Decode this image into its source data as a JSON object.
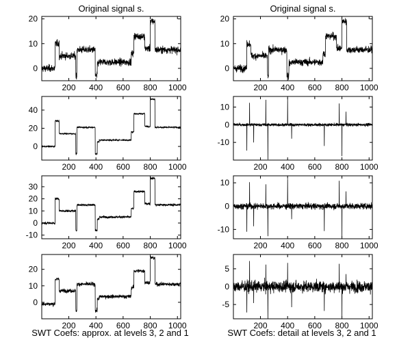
{
  "figure": {
    "background": "#ffffff",
    "line_color": "#000000",
    "bottom_labels": {
      "left": "SWT Coefs: approx. at levels 3, 2 and 1",
      "right": "SWT Coefs: detail at levels 3, 2 and 1"
    }
  },
  "chart_data": [
    {
      "id": "orig-left",
      "type": "line",
      "title": "Original signal s.",
      "xlim": [
        1,
        1024
      ],
      "ylim": [
        -5,
        21
      ],
      "xticks": [
        200,
        400,
        600,
        800,
        1000
      ],
      "yticks": [
        0,
        10,
        20
      ],
      "kind": "signal",
      "noise": 1.0,
      "segments": [
        [
          1,
          100,
          0
        ],
        [
          100,
          130,
          10
        ],
        [
          130,
          158,
          5
        ],
        [
          158,
          252,
          5
        ],
        [
          252,
          260,
          -3
        ],
        [
          260,
          395,
          7.5
        ],
        [
          395,
          410,
          -3
        ],
        [
          410,
          425,
          2
        ],
        [
          425,
          660,
          2.5
        ],
        [
          660,
          680,
          6
        ],
        [
          680,
          760,
          13
        ],
        [
          760,
          800,
          8
        ],
        [
          800,
          835,
          19
        ],
        [
          835,
          1024,
          7.5
        ]
      ]
    },
    {
      "id": "orig-right",
      "type": "line",
      "title": "Original signal s.",
      "xlim": [
        1,
        1024
      ],
      "ylim": [
        -5,
        21
      ],
      "xticks": [
        200,
        400,
        600,
        800,
        1000
      ],
      "yticks": [
        0,
        10,
        20
      ],
      "kind": "signal",
      "noise": 1.0,
      "segments": [
        [
          1,
          100,
          0
        ],
        [
          100,
          130,
          10
        ],
        [
          130,
          158,
          5
        ],
        [
          158,
          252,
          5
        ],
        [
          252,
          260,
          -3
        ],
        [
          260,
          395,
          7.5
        ],
        [
          395,
          410,
          -3
        ],
        [
          410,
          425,
          2
        ],
        [
          425,
          660,
          2.5
        ],
        [
          660,
          680,
          6
        ],
        [
          680,
          760,
          13
        ],
        [
          760,
          800,
          8
        ],
        [
          800,
          835,
          19
        ],
        [
          835,
          1024,
          7.5
        ]
      ]
    },
    {
      "id": "approx-3",
      "type": "line",
      "title": "",
      "xlim": [
        1,
        1024
      ],
      "ylim": [
        -15,
        55
      ],
      "xticks": [
        200,
        400,
        600,
        800,
        1000
      ],
      "yticks": [
        0,
        20,
        40
      ],
      "kind": "signal",
      "noise": 0.6,
      "segments": [
        [
          1,
          100,
          0
        ],
        [
          100,
          130,
          28
        ],
        [
          130,
          158,
          14
        ],
        [
          158,
          252,
          14
        ],
        [
          252,
          260,
          -8
        ],
        [
          260,
          395,
          21
        ],
        [
          395,
          410,
          -8
        ],
        [
          410,
          425,
          5
        ],
        [
          425,
          660,
          7
        ],
        [
          660,
          680,
          16
        ],
        [
          680,
          760,
          36
        ],
        [
          760,
          800,
          22
        ],
        [
          800,
          835,
          52
        ],
        [
          835,
          1024,
          21
        ]
      ]
    },
    {
      "id": "detail-3",
      "type": "line",
      "title": "",
      "xlim": [
        1,
        1024
      ],
      "ylim": [
        -20,
        16
      ],
      "xticks": [
        200,
        400,
        600,
        800,
        1000
      ],
      "yticks": [
        -10,
        0,
        10
      ],
      "kind": "detail",
      "noise": 0.6,
      "spikes": [
        [
          100,
          -15
        ],
        [
          120,
          13
        ],
        [
          150,
          -10
        ],
        [
          240,
          14
        ],
        [
          255,
          -20
        ],
        [
          400,
          15
        ],
        [
          430,
          -8
        ],
        [
          670,
          -12
        ],
        [
          780,
          12
        ],
        [
          800,
          -18
        ],
        [
          830,
          8
        ]
      ]
    },
    {
      "id": "approx-2",
      "type": "line",
      "title": "",
      "xlim": [
        1,
        1024
      ],
      "ylim": [
        -13,
        39
      ],
      "xticks": [
        200,
        400,
        600,
        800,
        1000
      ],
      "yticks": [
        -10,
        0,
        10,
        20,
        30
      ],
      "kind": "signal",
      "noise": 0.7,
      "segments": [
        [
          1,
          100,
          0
        ],
        [
          100,
          130,
          20
        ],
        [
          130,
          158,
          10
        ],
        [
          158,
          252,
          10
        ],
        [
          252,
          260,
          -6
        ],
        [
          260,
          395,
          15
        ],
        [
          395,
          410,
          -6
        ],
        [
          410,
          425,
          3
        ],
        [
          425,
          660,
          5
        ],
        [
          660,
          680,
          12
        ],
        [
          680,
          760,
          26
        ],
        [
          760,
          800,
          16
        ],
        [
          800,
          835,
          37
        ],
        [
          835,
          1024,
          15
        ]
      ]
    },
    {
      "id": "detail-2",
      "type": "line",
      "title": "",
      "xlim": [
        1,
        1024
      ],
      "ylim": [
        -14,
        13
      ],
      "xticks": [
        200,
        400,
        600,
        800,
        1000
      ],
      "yticks": [
        -10,
        0,
        10
      ],
      "kind": "detail",
      "noise": 0.9,
      "spikes": [
        [
          100,
          -11
        ],
        [
          120,
          11
        ],
        [
          150,
          -8
        ],
        [
          240,
          10
        ],
        [
          255,
          -13
        ],
        [
          400,
          12
        ],
        [
          430,
          -6
        ],
        [
          670,
          -10
        ],
        [
          780,
          10
        ],
        [
          800,
          -13
        ],
        [
          830,
          6
        ]
      ]
    },
    {
      "id": "approx-1",
      "type": "line",
      "title": "",
      "xlim": [
        1,
        1024
      ],
      "ylim": [
        -10,
        29
      ],
      "xticks": [
        200,
        400,
        600,
        800,
        1000
      ],
      "yticks": [
        0,
        10,
        20
      ],
      "kind": "signal",
      "noise": 0.8,
      "segments": [
        [
          1,
          100,
          -1
        ],
        [
          100,
          130,
          14
        ],
        [
          130,
          158,
          7
        ],
        [
          158,
          252,
          7
        ],
        [
          252,
          260,
          -5
        ],
        [
          260,
          395,
          11
        ],
        [
          395,
          410,
          -5
        ],
        [
          410,
          425,
          2
        ],
        [
          425,
          660,
          3.5
        ],
        [
          660,
          680,
          9
        ],
        [
          680,
          760,
          19
        ],
        [
          760,
          800,
          12
        ],
        [
          800,
          835,
          27
        ],
        [
          835,
          1024,
          11
        ]
      ]
    },
    {
      "id": "detail-1",
      "type": "line",
      "title": "",
      "xlim": [
        1,
        1024
      ],
      "ylim": [
        -9,
        9
      ],
      "xticks": [
        200,
        400,
        600,
        800,
        1000
      ],
      "yticks": [
        -5,
        0,
        5
      ],
      "kind": "detail",
      "noise": 1.1,
      "spikes": [
        [
          100,
          -7
        ],
        [
          120,
          6
        ],
        [
          150,
          -5
        ],
        [
          240,
          6
        ],
        [
          255,
          -9
        ],
        [
          400,
          8
        ],
        [
          430,
          -5
        ],
        [
          670,
          -6
        ],
        [
          780,
          6
        ],
        [
          800,
          -9
        ],
        [
          830,
          4
        ]
      ]
    }
  ]
}
